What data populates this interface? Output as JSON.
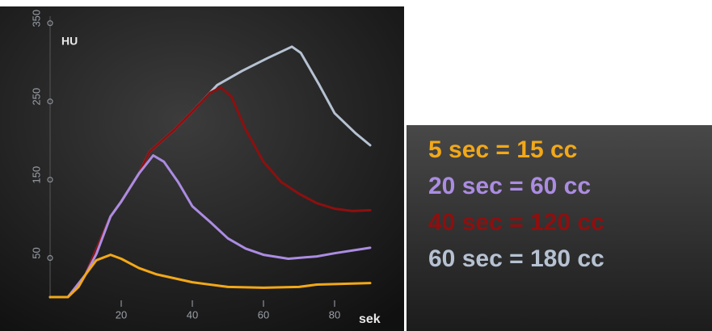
{
  "chart_data": {
    "type": "line",
    "y_label": "HU",
    "x_label": "sek",
    "xlim": [
      0,
      90
    ],
    "xticks": [
      20,
      40,
      60,
      80
    ],
    "ylim": [
      0,
      360
    ],
    "yticks": [
      50,
      150,
      250,
      350
    ],
    "series": [
      {
        "name": "5 sec = 15 cc",
        "color": "#f2a818",
        "x": [
          0,
          5,
          8,
          10,
          13,
          17,
          20,
          25,
          30,
          40,
          50,
          60,
          70,
          75,
          90
        ],
        "values": [
          0,
          0,
          13,
          29,
          47,
          54,
          49,
          37,
          29,
          19,
          13,
          12,
          13,
          16,
          18
        ]
      },
      {
        "name": "20 sec = 60 cc",
        "color": "#ab8ce2",
        "x": [
          0,
          5,
          10,
          13,
          17,
          20,
          25,
          29,
          32,
          36,
          40,
          45,
          50,
          55,
          60,
          67,
          75,
          80,
          90
        ],
        "values": [
          0,
          0,
          29,
          55,
          103,
          122,
          158,
          181,
          173,
          147,
          116,
          96,
          75,
          62,
          54,
          49,
          52,
          56,
          63
        ]
      },
      {
        "name": "40 sec = 120 cc",
        "color": "#8c1010",
        "x": [
          0,
          5,
          10,
          17,
          20,
          25,
          28,
          35,
          40,
          45,
          48,
          51,
          55,
          60,
          65,
          70,
          75,
          80,
          85,
          90
        ],
        "values": [
          0,
          0,
          29,
          103,
          122,
          158,
          186,
          214,
          237,
          261,
          268,
          256,
          214,
          173,
          147,
          132,
          120,
          113,
          110,
          111
        ]
      },
      {
        "name": "60 sec = 180 cc",
        "color": "#b6c2d2",
        "x": [
          0,
          5,
          10,
          17,
          20,
          25,
          28,
          35,
          40,
          47,
          54,
          61,
          68,
          70.5,
          75.7,
          80,
          86,
          90
        ],
        "values": [
          0,
          0,
          29,
          103,
          122,
          158,
          186,
          214,
          237,
          271,
          289,
          305,
          320,
          312,
          271,
          235,
          209,
          194
        ]
      }
    ]
  }
}
